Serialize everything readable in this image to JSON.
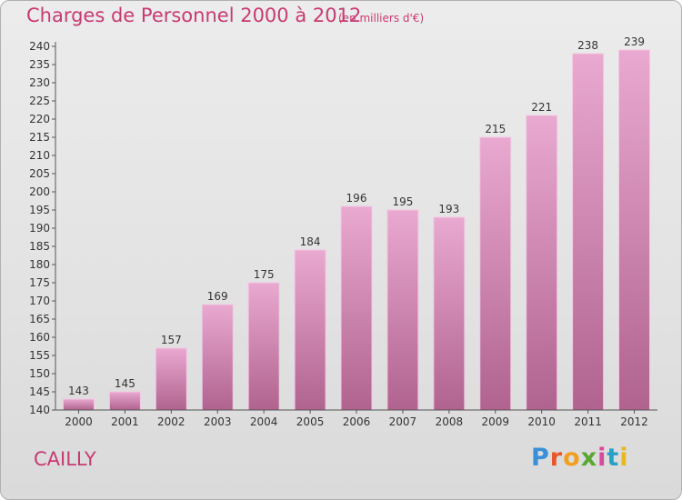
{
  "header": {
    "title": "Charges de Personnel 2000 à 2012",
    "unit": "(en milliers d'€)"
  },
  "footer": {
    "commune": "CAILLY",
    "logo_text": "Proxiti",
    "logo_colors": [
      "#3a8fd6",
      "#e8572a",
      "#f0a020",
      "#5aa832",
      "#d64a9a",
      "#2aa0c8",
      "#e8b820"
    ]
  },
  "colors": {
    "title": "#c93a72",
    "bar_top": "#e9a9d0",
    "bar_bottom": "#b0638f",
    "axis": "#555555"
  },
  "chart_data": {
    "type": "bar",
    "title": "Charges de Personnel 2000 à 2012",
    "categories": [
      "2000",
      "2001",
      "2002",
      "2003",
      "2004",
      "2005",
      "2006",
      "2007",
      "2008",
      "2009",
      "2010",
      "2011",
      "2012"
    ],
    "values": [
      143,
      145,
      157,
      169,
      175,
      184,
      196,
      195,
      193,
      215,
      221,
      238,
      239
    ],
    "ylim": [
      140,
      240
    ],
    "yticks": [
      140,
      145,
      150,
      155,
      160,
      165,
      170,
      175,
      180,
      185,
      190,
      195,
      200,
      205,
      210,
      215,
      220,
      225,
      230,
      235,
      240
    ],
    "grid": false,
    "legend": "none"
  }
}
